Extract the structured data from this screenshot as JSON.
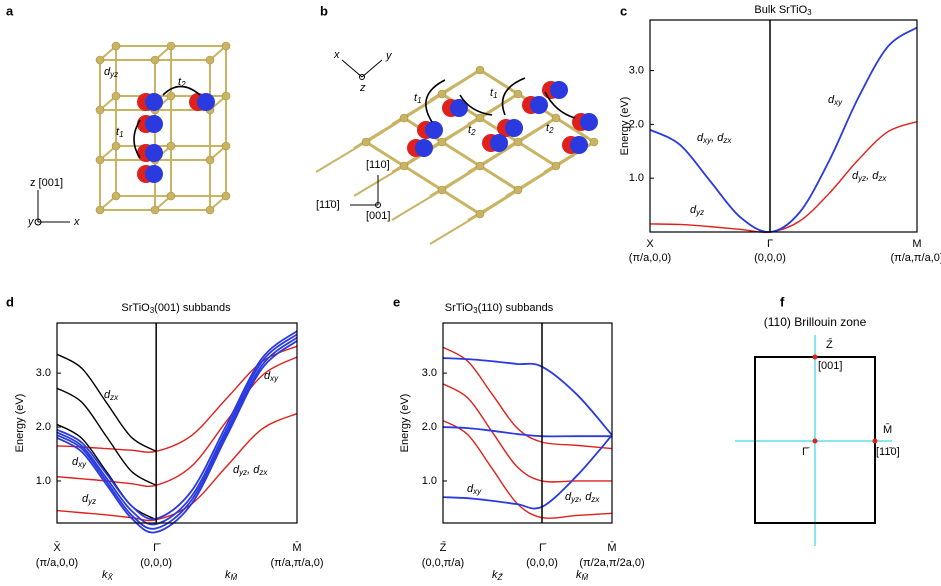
{
  "panels": {
    "a": {
      "letter": "a",
      "labels": [
        {
          "parts": [
            {
              "t": "d",
              "s": "yz"
            }
          ]
        },
        {
          "parts": [
            {
              "t": "t",
              "s": "2"
            }
          ]
        },
        {
          "parts": [
            {
              "t": "t",
              "s": "1"
            }
          ]
        }
      ],
      "axes": [
        "z [001]",
        "y",
        "x"
      ]
    },
    "b": {
      "letter": "b",
      "labels": [
        {
          "parts": [
            {
              "t": "t",
              "s": "1"
            }
          ]
        },
        {
          "parts": [
            {
              "t": "t",
              "s": "1"
            }
          ]
        },
        {
          "parts": [
            {
              "t": "t",
              "s": "2"
            }
          ]
        },
        {
          "parts": [
            {
              "t": "t",
              "s": "2"
            }
          ]
        }
      ],
      "axes": [
        "x",
        "y",
        "z",
        "[110]",
        "[11̄0]",
        "[001]"
      ]
    },
    "f": {
      "letter": "f",
      "title": "(110) Brillouin zone",
      "labels": [
        "Z̄",
        "[001]",
        "Γ̄",
        "M̄",
        "[11̄0]"
      ]
    }
  },
  "chart_data": [
    {
      "type": "line",
      "panel": "c",
      "title": {
        "parts": [
          {
            "t": "Bulk SrTiO",
            "s": "3"
          }
        ]
      },
      "ylabel": "Energy (eV)",
      "xlim": [
        -1,
        1.225
      ],
      "ylim": [
        0,
        3.94
      ],
      "xticks": [
        {
          "value": -1,
          "label": "X",
          "coordinate": "(π/a,0,0)"
        },
        {
          "value": 0,
          "label": "Γ",
          "coordinate": "(0,0,0)"
        },
        {
          "value": 1.225,
          "label": "M",
          "coordinate": "(π/a,π/a,0)"
        }
      ],
      "yticks": [
        {
          "value": 1,
          "label": "1.0"
        },
        {
          "value": 2,
          "label": "2.0"
        },
        {
          "value": 3,
          "label": "3.0"
        }
      ],
      "x": [
        -1,
        -0.75,
        -0.5,
        -0.25,
        0,
        0.245,
        0.49,
        0.735,
        0.98,
        1.225
      ],
      "series": [
        {
          "color": "#e0201b",
          "values": [
            0.15,
            0.14,
            0.1,
            0.05,
            0,
            0.2,
            0.71,
            1.34,
            1.86,
            2.05
          ]
        },
        {
          "color": "#2a3adf",
          "values": [
            1.9,
            1.62,
            0.95,
            0.28,
            0,
            0.36,
            1.31,
            2.49,
            3.44,
            3.8
          ]
        }
      ],
      "annotations": [
        {
          "color": "#000000",
          "parts": [
            {
              "t": "d",
              "s": "xy"
            },
            {
              "t": ", d",
              "s": "zx"
            }
          ]
        },
        {
          "color": "#2a3adf",
          "parts": [
            {
              "t": "d",
              "s": "xy"
            }
          ]
        },
        {
          "color": "#e0201b",
          "parts": [
            {
              "t": "d",
              "s": "yz"
            },
            {
              "t": ", d",
              "s": "zx"
            }
          ]
        },
        {
          "color": "#e0201b",
          "parts": [
            {
              "t": "d",
              "s": "yz"
            }
          ]
        }
      ]
    },
    {
      "type": "line",
      "panel": "d",
      "title": {
        "parts": [
          {
            "t": "SrTiO",
            "s": "3"
          },
          {
            "t": "(001) subbands"
          }
        ]
      },
      "ylabel": "Energy (eV)",
      "xlim": [
        -1,
        1.42
      ],
      "ylim": [
        0.22,
        3.93
      ],
      "xticks": [
        {
          "value": -1,
          "label": "X̄",
          "coordinate": "(π/a,0,0)"
        },
        {
          "value": 0,
          "label": "Γ̄",
          "coordinate": "(0,0,0)"
        },
        {
          "value": 1.42,
          "label": "M̄",
          "coordinate": "(π/a,π/a,0)"
        }
      ],
      "yticks": [
        {
          "value": 1,
          "label": "1.0"
        },
        {
          "value": 2,
          "label": "2.0"
        },
        {
          "value": 3,
          "label": "3.0"
        }
      ],
      "x": [
        -1,
        -0.75,
        -0.5,
        -0.25,
        0,
        0.355,
        0.71,
        1.065,
        1.42
      ],
      "series": [
        {
          "color": "#e0201b",
          "values": [
            1.65,
            1.63,
            1.6,
            1.57,
            1.55,
            1.84,
            2.53,
            3.21,
            3.5
          ]
        },
        {
          "color": "#e0201b",
          "values": [
            1.08,
            1.04,
            1.0,
            0.95,
            0.92,
            1.27,
            2.11,
            2.95,
            3.3
          ]
        },
        {
          "color": "#e0201b",
          "values": [
            0.45,
            0.41,
            0.37,
            0.32,
            0.28,
            0.57,
            1.27,
            1.96,
            2.25
          ]
        },
        {
          "color": "#000000",
          "values": [
            3.35,
            3.09,
            2.45,
            1.81,
            1.55,
            null,
            null,
            null,
            null
          ]
        },
        {
          "color": "#000000",
          "values": [
            2.72,
            2.46,
            1.82,
            1.18,
            0.92,
            null,
            null,
            null,
            null
          ]
        },
        {
          "color": "#000000",
          "values": [
            2.05,
            1.79,
            1.17,
            0.54,
            0.28,
            null,
            null,
            null,
            null
          ]
        },
        {
          "color": "#2a3adf",
          "values": [
            1.95,
            1.71,
            1.13,
            0.54,
            0.3,
            0.81,
            2.04,
            3.27,
            3.78
          ]
        },
        {
          "color": "#2a3adf",
          "values": [
            1.9,
            1.65,
            1.05,
            0.45,
            0.2,
            0.71,
            1.96,
            3.21,
            3.72
          ]
        },
        {
          "color": "#2a3adf",
          "values": [
            1.85,
            1.6,
            0.99,
            0.37,
            0.12,
            0.64,
            1.89,
            3.14,
            3.66
          ]
        },
        {
          "color": "#2a3adf",
          "values": [
            1.8,
            1.54,
            0.93,
            0.31,
            0.05,
            0.57,
            1.83,
            3.08,
            3.6
          ]
        }
      ],
      "annotations": [
        {
          "color": "#000000",
          "parts": [
            {
              "t": "d",
              "s": "zx"
            }
          ]
        },
        {
          "color": "#2a3adf",
          "parts": [
            {
              "t": "d",
              "s": "xy"
            }
          ]
        },
        {
          "color": "#2a3adf",
          "parts": [
            {
              "t": "d",
              "s": "xy"
            }
          ]
        },
        {
          "color": "#e0201b",
          "parts": [
            {
              "t": "d",
              "s": "yz"
            },
            {
              "t": ", d",
              "s": "zx"
            }
          ]
        },
        {
          "color": "#e0201b",
          "parts": [
            {
              "t": "d",
              "s": "yz"
            }
          ]
        }
      ],
      "k_labels": [
        {
          "parts": [
            {
              "t": "k",
              "s": "X̄"
            }
          ]
        },
        {
          "parts": [
            {
              "t": "k",
              "s": "M̄"
            }
          ]
        }
      ]
    },
    {
      "type": "line",
      "panel": "e",
      "title": {
        "parts": [
          {
            "t": "SrTiO",
            "s": "3"
          },
          {
            "t": "(110) subbands"
          }
        ]
      },
      "ylabel": "Energy (eV)",
      "xlim": [
        -1,
        0.707
      ],
      "ylim": [
        0.22,
        3.93
      ],
      "xticks": [
        {
          "value": -1,
          "label": "Z̄",
          "coordinate": "(0,0,π/a)"
        },
        {
          "value": 0,
          "label": "Γ̄",
          "coordinate": "(0,0,0)"
        },
        {
          "value": 0.707,
          "label": "M̄",
          "coordinate": "(π/2a,π/2a,0)"
        }
      ],
      "yticks": [
        {
          "value": 1,
          "label": "1.0"
        },
        {
          "value": 2,
          "label": "2.0"
        },
        {
          "value": 3,
          "label": "3.0"
        }
      ],
      "x": [
        -1,
        -0.75,
        -0.5,
        -0.25,
        0,
        0.354,
        0.707
      ],
      "series": [
        {
          "color": "#e0201b",
          "values": [
            3.48,
            3.22,
            2.6,
            1.98,
            1.72,
            1.66,
            1.6
          ]
        },
        {
          "color": "#e0201b",
          "values": [
            2.8,
            2.54,
            1.9,
            1.26,
            1.0,
            1.0,
            1.0
          ]
        },
        {
          "color": "#e0201b",
          "values": [
            2.12,
            1.86,
            1.22,
            0.58,
            0.32,
            0.36,
            0.4
          ]
        },
        {
          "color": "#2a3adf",
          "values": [
            3.28,
            3.26,
            3.22,
            3.17,
            3.12,
            2.6,
            1.85
          ]
        },
        {
          "color": "#2a3adf",
          "values": [
            2.0,
            1.98,
            1.93,
            1.87,
            1.83,
            1.83,
            1.83
          ]
        },
        {
          "color": "#2a3adf",
          "values": [
            0.7,
            0.68,
            0.63,
            0.57,
            0.52,
            1.1,
            1.85
          ]
        }
      ],
      "annotations": [
        {
          "color": "#2a3adf",
          "parts": [
            {
              "t": "d",
              "s": "xy"
            }
          ]
        },
        {
          "color": "#e0201b",
          "parts": [
            {
              "t": "d",
              "s": "yz"
            },
            {
              "t": ", d",
              "s": "zx"
            }
          ]
        }
      ],
      "k_labels": [
        {
          "parts": [
            {
              "t": "k",
              "s": "Z̄"
            }
          ]
        },
        {
          "parts": [
            {
              "t": "k",
              "s": "M̄"
            }
          ]
        }
      ]
    }
  ]
}
